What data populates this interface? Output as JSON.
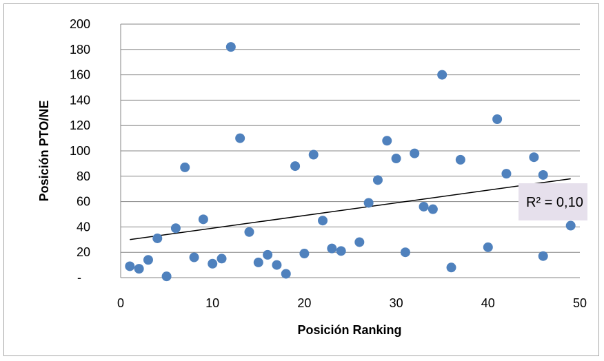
{
  "chart_data": {
    "type": "scatter",
    "xlabel": "Posición Ranking",
    "ylabel": "Posición PTO/NE",
    "xlim": [
      0,
      50
    ],
    "ylim": [
      0,
      200
    ],
    "x_ticks": [
      "0",
      "10",
      "20",
      "30",
      "40",
      "50"
    ],
    "y_ticks": [
      "-",
      "20",
      "40",
      "60",
      "80",
      "100",
      "120",
      "140",
      "160",
      "180",
      "200"
    ],
    "grid": "horizontal",
    "marker_color": "#4f81bd",
    "trendline": {
      "type": "linear",
      "x": [
        1,
        49
      ],
      "y": [
        30,
        78
      ],
      "color": "#000000"
    },
    "r2_label": "R² = 0,10",
    "r2_box_color": "#e6e0ec",
    "points": [
      {
        "x": 1,
        "y": 9
      },
      {
        "x": 2,
        "y": 7
      },
      {
        "x": 3,
        "y": 14
      },
      {
        "x": 4,
        "y": 31
      },
      {
        "x": 5,
        "y": 1
      },
      {
        "x": 6,
        "y": 39
      },
      {
        "x": 7,
        "y": 87
      },
      {
        "x": 8,
        "y": 16
      },
      {
        "x": 9,
        "y": 46
      },
      {
        "x": 10,
        "y": 11
      },
      {
        "x": 11,
        "y": 15
      },
      {
        "x": 12,
        "y": 182
      },
      {
        "x": 13,
        "y": 110
      },
      {
        "x": 14,
        "y": 36
      },
      {
        "x": 15,
        "y": 12
      },
      {
        "x": 16,
        "y": 18
      },
      {
        "x": 17,
        "y": 10
      },
      {
        "x": 18,
        "y": 3
      },
      {
        "x": 19,
        "y": 88
      },
      {
        "x": 20,
        "y": 19
      },
      {
        "x": 21,
        "y": 97
      },
      {
        "x": 22,
        "y": 45
      },
      {
        "x": 23,
        "y": 23
      },
      {
        "x": 24,
        "y": 21
      },
      {
        "x": 26,
        "y": 28
      },
      {
        "x": 27,
        "y": 59
      },
      {
        "x": 28,
        "y": 77
      },
      {
        "x": 29,
        "y": 108
      },
      {
        "x": 30,
        "y": 94
      },
      {
        "x": 31,
        "y": 20
      },
      {
        "x": 32,
        "y": 98
      },
      {
        "x": 33,
        "y": 56
      },
      {
        "x": 34,
        "y": 54
      },
      {
        "x": 35,
        "y": 160
      },
      {
        "x": 36,
        "y": 8
      },
      {
        "x": 37,
        "y": 93
      },
      {
        "x": 40,
        "y": 24
      },
      {
        "x": 41,
        "y": 125
      },
      {
        "x": 42,
        "y": 82
      },
      {
        "x": 44,
        "y": 57
      },
      {
        "x": 45,
        "y": 95
      },
      {
        "x": 46,
        "y": 81
      },
      {
        "x": 46,
        "y": 17
      },
      {
        "x": 49,
        "y": 41
      }
    ]
  }
}
